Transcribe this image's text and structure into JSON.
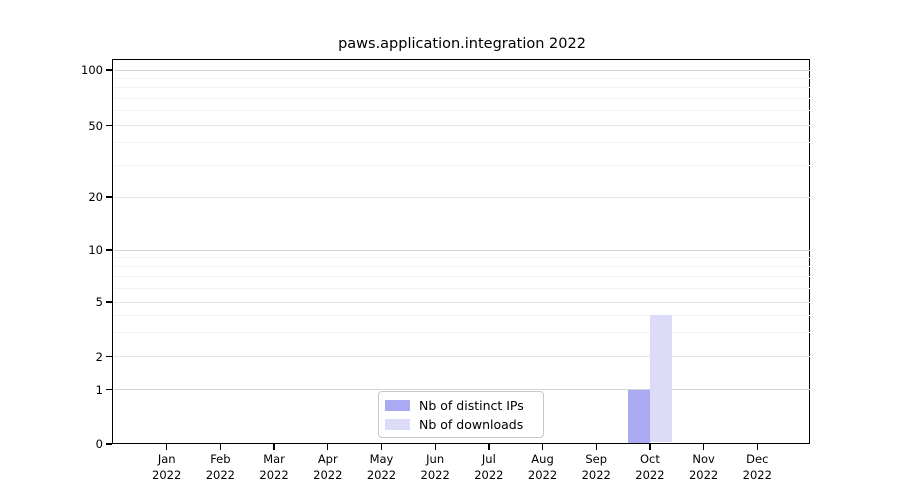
{
  "title": "paws.application.integration 2022",
  "chart_data": {
    "type": "bar",
    "title": "paws.application.integration 2022",
    "categories": [
      "Jan 2022",
      "Feb 2022",
      "Mar 2022",
      "Apr 2022",
      "May 2022",
      "Jun 2022",
      "Jul 2022",
      "Aug 2022",
      "Sep 2022",
      "Oct 2022",
      "Nov 2022",
      "Dec 2022"
    ],
    "series": [
      {
        "name": "Nb of distinct IPs",
        "color": "#aaaaf2",
        "values": [
          0,
          0,
          0,
          0,
          0,
          0,
          0,
          0,
          0,
          1,
          0,
          0
        ]
      },
      {
        "name": "Nb of downloads",
        "color": "#dcdcf9",
        "values": [
          0,
          0,
          0,
          0,
          0,
          0,
          0,
          0,
          0,
          4,
          0,
          0
        ]
      }
    ],
    "xlabel": "",
    "ylabel": "",
    "y_ticks": [
      0,
      1,
      2,
      5,
      10,
      20,
      50,
      100
    ],
    "y_minor_ticks": [
      3,
      4,
      6,
      7,
      8,
      9,
      30,
      40,
      60,
      70,
      80,
      90
    ],
    "ylim": [
      0,
      110
    ],
    "y_scale": "log-like with linear 0-1 segment",
    "grid": "horizontal, major and minor",
    "legend_position": "bottom-center inside plot",
    "bar_layout": "grouped pair centered on month tick"
  },
  "legend": {
    "items": [
      {
        "label": "Nb of distinct IPs",
        "color": "#aaaaf2"
      },
      {
        "label": "Nb of downloads",
        "color": "#dcdcf9"
      }
    ]
  }
}
